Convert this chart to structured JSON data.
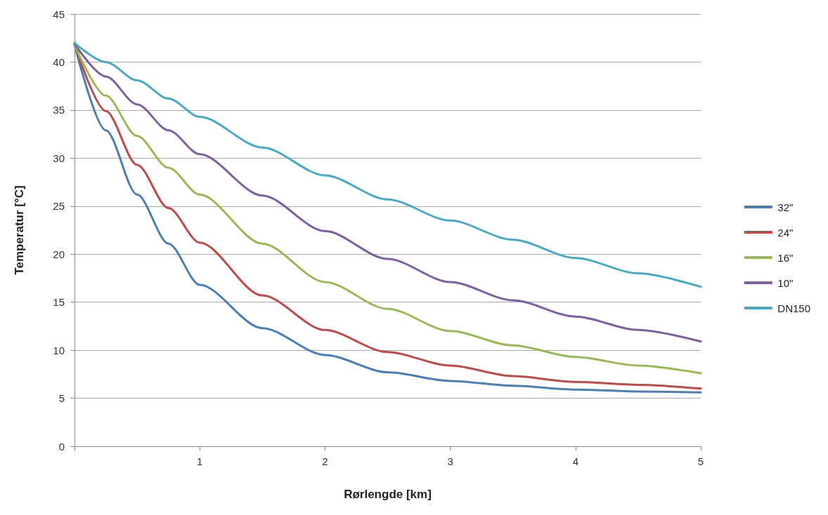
{
  "chart_data": {
    "type": "line",
    "xlabel": "Rørlengde [km]",
    "ylabel": "Temperatur [°C]",
    "x": [
      0,
      0.25,
      0.5,
      0.75,
      1,
      1.5,
      2,
      2.5,
      3,
      3.5,
      4,
      4.5,
      5
    ],
    "series": [
      {
        "name": "32\"",
        "color": "#4a7ebb",
        "values": [
          41.8,
          32.9,
          26.2,
          21.1,
          16.8,
          12.3,
          9.5,
          7.7,
          6.8,
          6.3,
          5.9,
          5.7,
          5.6
        ]
      },
      {
        "name": "24\"",
        "color": "#be4b48",
        "values": [
          41.8,
          34.9,
          29.3,
          24.8,
          21.2,
          15.7,
          12.1,
          9.8,
          8.4,
          7.3,
          6.7,
          6.4,
          6.0
        ]
      },
      {
        "name": "16\"",
        "color": "#98b954",
        "values": [
          41.8,
          36.5,
          32.3,
          29.0,
          26.2,
          21.1,
          17.1,
          14.3,
          12.0,
          10.5,
          9.3,
          8.4,
          7.6
        ]
      },
      {
        "name": "10\"",
        "color": "#7d60a0",
        "values": [
          41.9,
          38.5,
          35.6,
          32.9,
          30.4,
          26.1,
          22.4,
          19.5,
          17.1,
          15.2,
          13.5,
          12.1,
          10.9
        ]
      },
      {
        "name": "DN150",
        "color": "#46aac5",
        "values": [
          42.0,
          40.0,
          38.1,
          36.2,
          34.3,
          31.1,
          28.2,
          25.7,
          23.5,
          21.5,
          19.6,
          18.0,
          16.6
        ]
      }
    ],
    "xlim": [
      0,
      5
    ],
    "xticks": [
      {
        "value": 0,
        "label": null
      },
      1,
      2,
      3,
      4,
      5
    ],
    "ylim": [
      0,
      45
    ],
    "yticks": [
      0,
      5,
      10,
      15,
      20,
      25,
      30,
      35,
      40,
      45
    ],
    "grid": "y",
    "legend": "right",
    "marker": "none",
    "line_style": "solid"
  }
}
